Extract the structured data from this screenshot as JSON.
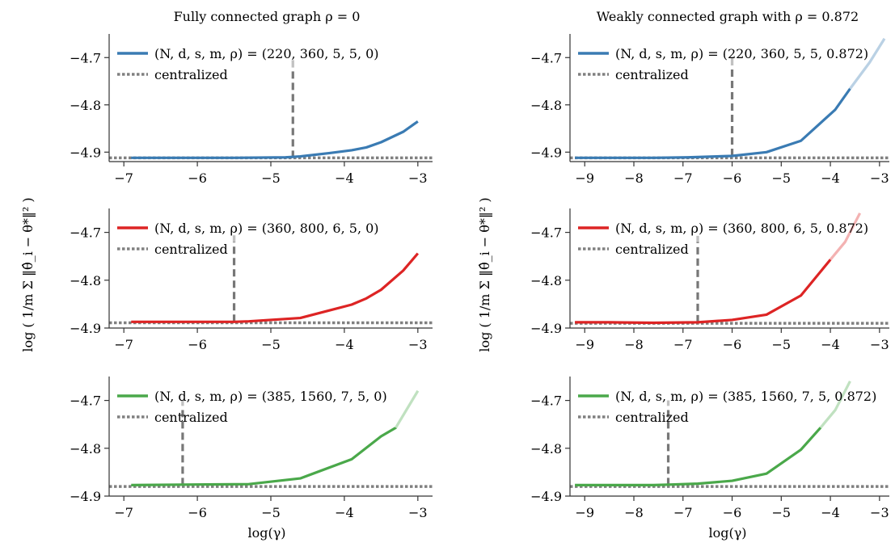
{
  "panel_titles": [
    "Fully connected graph ρ = 0",
    "Weakly connected graph with ρ = 0.872"
  ],
  "ylabel": "log ( 1/m Σ ‖θ̂_i − θ*‖² )",
  "xlabel": "log(γ)",
  "legend_baseline_label": "centralized",
  "colors": {
    "blue": "#3a7bb3",
    "red": "#dd2424",
    "green": "#4aa84a",
    "vline": "#777777",
    "baseline": "#808080"
  },
  "chart_data": [
    {
      "type": "line",
      "title": "Fully connected graph ρ = 0",
      "xlim": [
        -7.2,
        -2.8
      ],
      "ylim": [
        -4.92,
        -4.65
      ],
      "xticks": [
        -7,
        -6,
        -5,
        -4,
        -3
      ],
      "xtick_labels": [
        "−7",
        "−6",
        "−5",
        "−4",
        "−3"
      ],
      "yticks": [
        -4.9,
        -4.8,
        -4.7
      ],
      "ytick_labels": [
        "−4.9",
        "−4.8",
        "−4.7"
      ],
      "series": [
        {
          "name": "(N, d, s, m, ρ) = (220, 360, 5, 5, 0)",
          "color": "#3a7bb3",
          "x": [
            -6.9,
            -6.2,
            -5.5,
            -4.8,
            -4.6,
            -4.2,
            -3.9,
            -3.7,
            -3.5,
            -3.2,
            -3.0
          ],
          "y": [
            -4.912,
            -4.912,
            -4.912,
            -4.911,
            -4.909,
            -4.902,
            -4.896,
            -4.89,
            -4.879,
            -4.857,
            -4.835
          ]
        },
        {
          "name": "centralized",
          "style": "dotted",
          "color": "#808080",
          "x": [
            -7.2,
            -2.8
          ],
          "y": [
            -4.912,
            -4.912
          ]
        }
      ],
      "vline": {
        "x": -4.7,
        "y": [
          -4.912,
          -4.7
        ]
      },
      "fade_segments": []
    },
    {
      "type": "line",
      "title": "",
      "xlim": [
        -7.2,
        -2.8
      ],
      "ylim": [
        -4.9,
        -4.65
      ],
      "xticks": [
        -7,
        -6,
        -5,
        -4,
        -3
      ],
      "xtick_labels": [
        "−7",
        "−6",
        "−5",
        "−4",
        "−3"
      ],
      "yticks": [
        -4.9,
        -4.8,
        -4.7
      ],
      "ytick_labels": [
        "−4.9",
        "−4.8",
        "−4.7"
      ],
      "series": [
        {
          "name": "(N, d, s, m, ρ) = (360, 800, 6, 5, 0)",
          "color": "#dd2424",
          "x": [
            -6.9,
            -6.2,
            -5.5,
            -5.3,
            -4.6,
            -3.9,
            -3.7,
            -3.5,
            -3.2,
            -3.0
          ],
          "y": [
            -4.887,
            -4.887,
            -4.887,
            -4.886,
            -4.879,
            -4.851,
            -4.838,
            -4.82,
            -4.78,
            -4.744
          ]
        },
        {
          "name": "centralized",
          "style": "dotted",
          "color": "#808080",
          "x": [
            -7.2,
            -2.8
          ],
          "y": [
            -4.889,
            -4.889
          ]
        }
      ],
      "vline": {
        "x": -5.5,
        "y": [
          -4.887,
          -4.7
        ]
      },
      "fade_segments": []
    },
    {
      "type": "line",
      "title": "",
      "xlim": [
        -7.2,
        -2.8
      ],
      "ylim": [
        -4.9,
        -4.65
      ],
      "xticks": [
        -7,
        -6,
        -5,
        -4,
        -3
      ],
      "xtick_labels": [
        "−7",
        "−6",
        "−5",
        "−4",
        "−3"
      ],
      "yticks": [
        -4.9,
        -4.8,
        -4.7
      ],
      "ytick_labels": [
        "−4.9",
        "−4.8",
        "−4.7"
      ],
      "series": [
        {
          "name": "(N, d, s, m, ρ) = (385, 1560, 7, 5, 0)",
          "color": "#4aa84a",
          "x": [
            -6.9,
            -6.2,
            -5.3,
            -4.6,
            -3.9,
            -3.5,
            -3.3,
            -3.0
          ],
          "y": [
            -4.877,
            -4.876,
            -4.875,
            -4.863,
            -4.823,
            -4.775,
            -4.757,
            -4.68
          ]
        },
        {
          "name": "centralized",
          "style": "dotted",
          "color": "#808080",
          "x": [
            -7.2,
            -2.8
          ],
          "y": [
            -4.88,
            -4.88
          ]
        }
      ],
      "vline": {
        "x": -6.2,
        "y": [
          -4.877,
          -4.7
        ]
      },
      "fade_segments": [
        {
          "x": [
            -3.3,
            -3.0
          ],
          "y": [
            -4.757,
            -4.68
          ]
        }
      ]
    },
    {
      "type": "line",
      "title": "Weakly connected graph with ρ = 0.872",
      "xlim": [
        -9.3,
        -2.8
      ],
      "ylim": [
        -4.92,
        -4.65
      ],
      "xticks": [
        -9,
        -8,
        -7,
        -6,
        -5,
        -4,
        -3
      ],
      "xtick_labels": [
        "−9",
        "−8",
        "−7",
        "−6",
        "−5",
        "−4",
        "−3"
      ],
      "yticks": [
        -4.9,
        -4.8,
        -4.7
      ],
      "ytick_labels": [
        "−4.9",
        "−4.8",
        "−4.7"
      ],
      "series": [
        {
          "name": "(N, d, s, m, ρ) = (220, 360, 5, 5, 0.872)",
          "color": "#3a7bb3",
          "x": [
            -9.2,
            -8.5,
            -7.6,
            -6.9,
            -6.0,
            -5.3,
            -4.6,
            -3.9,
            -3.6,
            -3.2,
            -2.9
          ],
          "y": [
            -4.912,
            -4.912,
            -4.912,
            -4.911,
            -4.908,
            -4.9,
            -4.876,
            -4.81,
            -4.766,
            -4.71,
            -4.66
          ]
        },
        {
          "name": "centralized",
          "style": "dotted",
          "color": "#808080",
          "x": [
            -9.3,
            -2.8
          ],
          "y": [
            -4.912,
            -4.912
          ]
        }
      ],
      "vline": {
        "x": -6.0,
        "y": [
          -4.908,
          -4.7
        ]
      },
      "fade_segments": [
        {
          "x": [
            -3.6,
            -3.2,
            -2.9
          ],
          "y": [
            -4.766,
            -4.71,
            -4.66
          ]
        }
      ]
    },
    {
      "type": "line",
      "title": "",
      "xlim": [
        -9.3,
        -2.8
      ],
      "ylim": [
        -4.9,
        -4.65
      ],
      "xticks": [
        -9,
        -8,
        -7,
        -6,
        -5,
        -4,
        -3
      ],
      "xtick_labels": [
        "−9",
        "−8",
        "−7",
        "−6",
        "−5",
        "−4",
        "−3"
      ],
      "yticks": [
        -4.9,
        -4.8,
        -4.7
      ],
      "ytick_labels": [
        "−4.9",
        "−4.8",
        "−4.7"
      ],
      "series": [
        {
          "name": "(N, d, s, m, ρ) = (360, 800, 6, 5, 0.872)",
          "color": "#dd2424",
          "x": [
            -9.2,
            -8.5,
            -7.6,
            -6.7,
            -6.0,
            -5.3,
            -4.6,
            -4.0,
            -3.7,
            -3.4
          ],
          "y": [
            -4.888,
            -4.888,
            -4.889,
            -4.888,
            -4.883,
            -4.872,
            -4.832,
            -4.757,
            -4.72,
            -4.66
          ]
        },
        {
          "name": "centralized",
          "style": "dotted",
          "color": "#808080",
          "x": [
            -9.3,
            -2.8
          ],
          "y": [
            -4.89,
            -4.89
          ]
        }
      ],
      "vline": {
        "x": -6.7,
        "y": [
          -4.888,
          -4.7
        ]
      },
      "fade_segments": [
        {
          "x": [
            -4.0,
            -3.7,
            -3.4
          ],
          "y": [
            -4.757,
            -4.72,
            -4.66
          ]
        }
      ]
    },
    {
      "type": "line",
      "title": "",
      "xlim": [
        -9.3,
        -2.8
      ],
      "ylim": [
        -4.9,
        -4.65
      ],
      "xticks": [
        -9,
        -8,
        -7,
        -6,
        -5,
        -4,
        -3
      ],
      "xtick_labels": [
        "−9",
        "−8",
        "−7",
        "−6",
        "−5",
        "−4",
        "−3"
      ],
      "yticks": [
        -4.9,
        -4.8,
        -4.7
      ],
      "ytick_labels": [
        "−4.9",
        "−4.8",
        "−4.7"
      ],
      "series": [
        {
          "name": "(N, d, s, m, ρ) = (385, 1560, 7, 5, 0.872)",
          "color": "#4aa84a",
          "x": [
            -9.2,
            -8.5,
            -7.6,
            -7.3,
            -6.7,
            -6.0,
            -5.3,
            -4.6,
            -4.2,
            -3.9,
            -3.6
          ],
          "y": [
            -4.877,
            -4.877,
            -4.877,
            -4.876,
            -4.874,
            -4.868,
            -4.853,
            -4.803,
            -4.757,
            -4.72,
            -4.66
          ]
        },
        {
          "name": "centralized",
          "style": "dotted",
          "color": "#808080",
          "x": [
            -9.3,
            -2.8
          ],
          "y": [
            -4.88,
            -4.88
          ]
        }
      ],
      "vline": {
        "x": -7.3,
        "y": [
          -4.877,
          -4.7
        ]
      },
      "fade_segments": [
        {
          "x": [
            -4.2,
            -3.9,
            -3.6
          ],
          "y": [
            -4.757,
            -4.72,
            -4.66
          ]
        }
      ]
    }
  ]
}
